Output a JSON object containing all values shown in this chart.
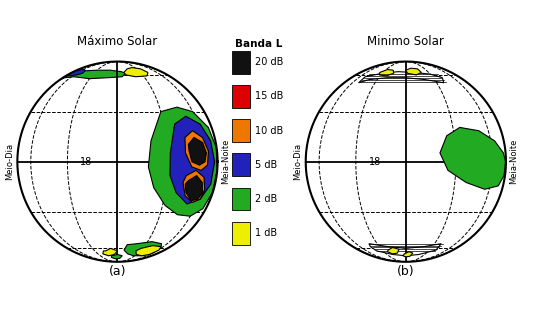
{
  "title_a": "Máximo Solar",
  "title_b": "Minimo Solar",
  "label_a": "(a)",
  "label_b": "(b)",
  "legend_title": "Banda L",
  "legend_items": [
    {
      "label": "20 dB",
      "color": "#111111"
    },
    {
      "label": "15 dB",
      "color": "#dd0000"
    },
    {
      "label": "10 dB",
      "color": "#ee7700"
    },
    {
      "label": "5 dB",
      "color": "#2222bb"
    },
    {
      "label": "2 dB",
      "color": "#22aa22"
    },
    {
      "label": "1 dB",
      "color": "#eeee00"
    }
  ],
  "meio_dia": "Meio-Dia",
  "meia_noite": "Meia-Noite",
  "label_18": "18",
  "bg_color": "#ffffff"
}
